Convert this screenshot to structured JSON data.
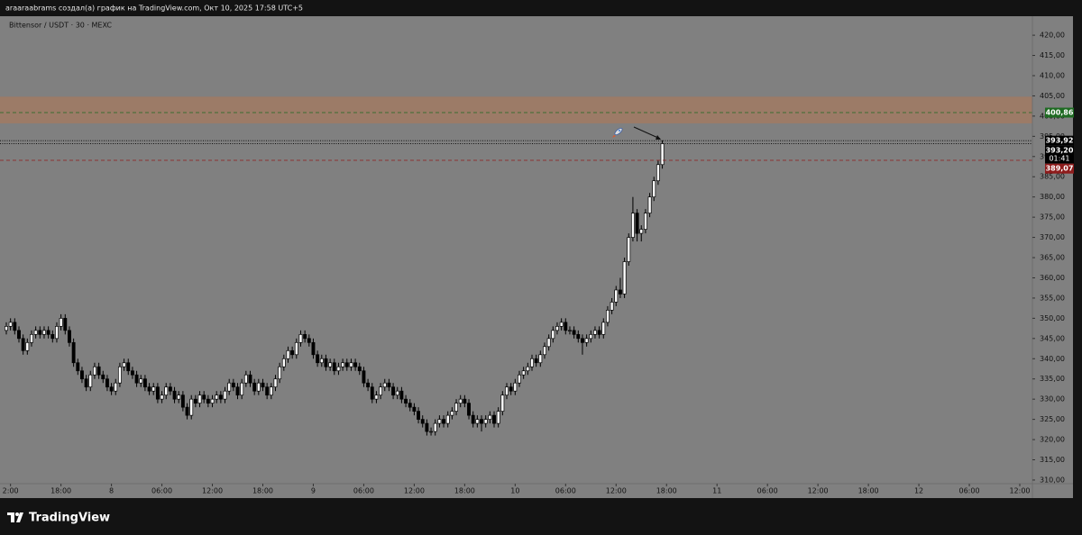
{
  "header": {
    "title": "araaraabrams создал(а) график на TradingView.com, Окт 10, 2025 17:58 UTC+5"
  },
  "footer": {
    "brand": "TradingView"
  },
  "chart_data": {
    "type": "candlestick",
    "title": "Bittensor / USDT · 30 · MEXC",
    "background": "#808080",
    "up_color": "#ffffff",
    "down_color": "#000000",
    "xlim": [
      -1.5,
      244
    ],
    "ylim": [
      309.1,
      424.7
    ],
    "xticks": [
      {
        "value": 1,
        "label": "2:00"
      },
      {
        "value": 13,
        "label": "18:00"
      },
      {
        "value": 25,
        "label": "8"
      },
      {
        "value": 37,
        "label": "06:00"
      },
      {
        "value": 49,
        "label": "12:00"
      },
      {
        "value": 61,
        "label": "18:00"
      },
      {
        "value": 73,
        "label": "9"
      },
      {
        "value": 85,
        "label": "06:00"
      },
      {
        "value": 97,
        "label": "12:00"
      },
      {
        "value": 109,
        "label": "18:00"
      },
      {
        "value": 121,
        "label": "10"
      },
      {
        "value": 133,
        "label": "06:00"
      },
      {
        "value": 145,
        "label": "12:00"
      },
      {
        "value": 157,
        "label": "18:00"
      },
      {
        "value": 169,
        "label": "11"
      },
      {
        "value": 181,
        "label": "06:00"
      },
      {
        "value": 193,
        "label": "12:00"
      },
      {
        "value": 205,
        "label": "18:00"
      },
      {
        "value": 217,
        "label": "12"
      },
      {
        "value": 229,
        "label": "06:00"
      },
      {
        "value": 241,
        "label": "12:00"
      }
    ],
    "yticks": [
      {
        "value": 310,
        "label": "310,00"
      },
      {
        "value": 315,
        "label": "315,00"
      },
      {
        "value": 320,
        "label": "320,00"
      },
      {
        "value": 325,
        "label": "325,00"
      },
      {
        "value": 330,
        "label": "330,00"
      },
      {
        "value": 335,
        "label": "335,00"
      },
      {
        "value": 340,
        "label": "340,00"
      },
      {
        "value": 345,
        "label": "345,00"
      },
      {
        "value": 350,
        "label": "350,00"
      },
      {
        "value": 355,
        "label": "355,00"
      },
      {
        "value": 360,
        "label": "360,00"
      },
      {
        "value": 365,
        "label": "365,00"
      },
      {
        "value": 370,
        "label": "370,00"
      },
      {
        "value": 375,
        "label": "375,00"
      },
      {
        "value": 380,
        "label": "380,00"
      },
      {
        "value": 385,
        "label": "385,00"
      },
      {
        "value": 390,
        "label": "390,00"
      },
      {
        "value": 395,
        "label": "395,00"
      },
      {
        "value": 400,
        "label": "400,00"
      },
      {
        "value": 405,
        "label": "405,00"
      },
      {
        "value": 410,
        "label": "410,00"
      },
      {
        "value": 415,
        "label": "415,00"
      },
      {
        "value": 420,
        "label": "420,00"
      }
    ],
    "zone": {
      "range": [
        398.2,
        404.8
      ],
      "color": "#9c7b67"
    },
    "price_lines": [
      {
        "value": 400.86,
        "label": "400,86",
        "color": "#1e6b22",
        "style": "dashed"
      },
      {
        "value": 393.92,
        "label": "393,92",
        "color": "#000000",
        "style": "dotted"
      },
      {
        "value": 393.2,
        "label": "393,20",
        "sublabel": "01:41",
        "color": "#000000",
        "style": "dotted"
      },
      {
        "value": 389.07,
        "label": "389,07",
        "color": "#8e1c1c",
        "style": "dashed"
      }
    ],
    "candles": [
      [
        347,
        349,
        346,
        348
      ],
      [
        348,
        350,
        347,
        349
      ],
      [
        349,
        350,
        346,
        347
      ],
      [
        347,
        348,
        344,
        345
      ],
      [
        345,
        346,
        341,
        342
      ],
      [
        342,
        345,
        341,
        344
      ],
      [
        344,
        347,
        343,
        346
      ],
      [
        346,
        348,
        345,
        347
      ],
      [
        347,
        348,
        345,
        346
      ],
      [
        346,
        348,
        345,
        347
      ],
      [
        347,
        348,
        345,
        346
      ],
      [
        346,
        347,
        344,
        345
      ],
      [
        345,
        349,
        344,
        348
      ],
      [
        348,
        351,
        347,
        350
      ],
      [
        350,
        351,
        346,
        347
      ],
      [
        347,
        348,
        343,
        344
      ],
      [
        344,
        345,
        338,
        339
      ],
      [
        339,
        340,
        336,
        337
      ],
      [
        337,
        338,
        334,
        335
      ],
      [
        335,
        336,
        332,
        333
      ],
      [
        333,
        337,
        332,
        336
      ],
      [
        336,
        339,
        335,
        338
      ],
      [
        338,
        339,
        335,
        336
      ],
      [
        336,
        337,
        334,
        335
      ],
      [
        335,
        336,
        332,
        333
      ],
      [
        333,
        334,
        331,
        332
      ],
      [
        332,
        335,
        331,
        334
      ],
      [
        334,
        339,
        333,
        338
      ],
      [
        338,
        340,
        337,
        339
      ],
      [
        339,
        340,
        336,
        337
      ],
      [
        337,
        338,
        335,
        336
      ],
      [
        336,
        337,
        333,
        334
      ],
      [
        334,
        336,
        333,
        335
      ],
      [
        335,
        336,
        332,
        333
      ],
      [
        333,
        334,
        331,
        332
      ],
      [
        332,
        334,
        331,
        333
      ],
      [
        333,
        334,
        329,
        330
      ],
      [
        330,
        332,
        329,
        331
      ],
      [
        331,
        334,
        330,
        333
      ],
      [
        333,
        334,
        331,
        332
      ],
      [
        332,
        333,
        329,
        330
      ],
      [
        330,
        332,
        329,
        331
      ],
      [
        331,
        332,
        327,
        328
      ],
      [
        328,
        329,
        325,
        326
      ],
      [
        326,
        331,
        325,
        330
      ],
      [
        330,
        331,
        328,
        329
      ],
      [
        329,
        332,
        328,
        331
      ],
      [
        331,
        332,
        329,
        330
      ],
      [
        330,
        331,
        328,
        329
      ],
      [
        329,
        331,
        328,
        330
      ],
      [
        330,
        332,
        329,
        331
      ],
      [
        331,
        332,
        329,
        330
      ],
      [
        330,
        333,
        329,
        332
      ],
      [
        332,
        335,
        331,
        334
      ],
      [
        334,
        335,
        332,
        333
      ],
      [
        333,
        334,
        330,
        331
      ],
      [
        331,
        335,
        330,
        334
      ],
      [
        334,
        337,
        333,
        336
      ],
      [
        336,
        337,
        333,
        334
      ],
      [
        334,
        335,
        331,
        332
      ],
      [
        332,
        335,
        331,
        334
      ],
      [
        334,
        335,
        332,
        333
      ],
      [
        333,
        334,
        330,
        331
      ],
      [
        331,
        334,
        330,
        333
      ],
      [
        333,
        336,
        332,
        335
      ],
      [
        335,
        339,
        334,
        338
      ],
      [
        338,
        341,
        337,
        340
      ],
      [
        340,
        343,
        339,
        342
      ],
      [
        342,
        343,
        340,
        341
      ],
      [
        341,
        345,
        340,
        344
      ],
      [
        344,
        347,
        343,
        346
      ],
      [
        346,
        347,
        344,
        345
      ],
      [
        345,
        346,
        343,
        344
      ],
      [
        344,
        345,
        340,
        341
      ],
      [
        341,
        342,
        338,
        339
      ],
      [
        339,
        341,
        338,
        340
      ],
      [
        340,
        341,
        337,
        338
      ],
      [
        338,
        340,
        337,
        339
      ],
      [
        339,
        340,
        336,
        337
      ],
      [
        337,
        339,
        336,
        338
      ],
      [
        338,
        340,
        337,
        339
      ],
      [
        339,
        340,
        337,
        338
      ],
      [
        338,
        340,
        337,
        339
      ],
      [
        339,
        340,
        337,
        338
      ],
      [
        338,
        339,
        336,
        337
      ],
      [
        337,
        338,
        333,
        334
      ],
      [
        334,
        335,
        332,
        333
      ],
      [
        333,
        334,
        329,
        330
      ],
      [
        330,
        332,
        329,
        331
      ],
      [
        331,
        334,
        330,
        333
      ],
      [
        333,
        335,
        332,
        334
      ],
      [
        334,
        335,
        332,
        333
      ],
      [
        333,
        334,
        330,
        331
      ],
      [
        331,
        333,
        330,
        332
      ],
      [
        332,
        333,
        329,
        330
      ],
      [
        330,
        331,
        328,
        329
      ],
      [
        329,
        330,
        327,
        328
      ],
      [
        328,
        329,
        326,
        327
      ],
      [
        327,
        328,
        324,
        325
      ],
      [
        325,
        326,
        323,
        324
      ],
      [
        324,
        325,
        321,
        322
      ],
      [
        322,
        323,
        321,
        322
      ],
      [
        322,
        325,
        321,
        324
      ],
      [
        324,
        326,
        323,
        325
      ],
      [
        325,
        326,
        323,
        324
      ],
      [
        324,
        327,
        323,
        326
      ],
      [
        326,
        328,
        325,
        327
      ],
      [
        327,
        330,
        326,
        329
      ],
      [
        329,
        331,
        328,
        330
      ],
      [
        330,
        331,
        328,
        329
      ],
      [
        329,
        330,
        325,
        326
      ],
      [
        326,
        327,
        323,
        324
      ],
      [
        324,
        326,
        323,
        325
      ],
      [
        325,
        326,
        322,
        324
      ],
      [
        324,
        326,
        323,
        325
      ],
      [
        325,
        327,
        324,
        326
      ],
      [
        326,
        327,
        323,
        324
      ],
      [
        324,
        328,
        323,
        327
      ],
      [
        327,
        332,
        326,
        331
      ],
      [
        331,
        334,
        330,
        333
      ],
      [
        333,
        334,
        331,
        332
      ],
      [
        332,
        335,
        331,
        334
      ],
      [
        334,
        337,
        333,
        336
      ],
      [
        336,
        338,
        335,
        337
      ],
      [
        337,
        339,
        336,
        338
      ],
      [
        338,
        341,
        337,
        340
      ],
      [
        340,
        341,
        338,
        339
      ],
      [
        339,
        342,
        338,
        341
      ],
      [
        341,
        344,
        340,
        343
      ],
      [
        343,
        346,
        342,
        345
      ],
      [
        345,
        348,
        344,
        347
      ],
      [
        347,
        349,
        346,
        348
      ],
      [
        348,
        350,
        347,
        349
      ],
      [
        349,
        350,
        346,
        347
      ],
      [
        347,
        348,
        346,
        347
      ],
      [
        347,
        348,
        345,
        346
      ],
      [
        346,
        347,
        344,
        345
      ],
      [
        345,
        346,
        341,
        344
      ],
      [
        344,
        346,
        343,
        345
      ],
      [
        345,
        347,
        344,
        346
      ],
      [
        346,
        348,
        345,
        347
      ],
      [
        347,
        348,
        345,
        346
      ],
      [
        346,
        350,
        345,
        349
      ],
      [
        349,
        353,
        348,
        352
      ],
      [
        352,
        355,
        351,
        354
      ],
      [
        354,
        358,
        353,
        357
      ],
      [
        357,
        360,
        355,
        356
      ],
      [
        356,
        365,
        355,
        364
      ],
      [
        364,
        371,
        363,
        370
      ],
      [
        370,
        380,
        369,
        376
      ],
      [
        376,
        377,
        369,
        371
      ],
      [
        371,
        373,
        369,
        372
      ],
      [
        372,
        377,
        371,
        376
      ],
      [
        376,
        381,
        375,
        380
      ],
      [
        380,
        385,
        379,
        384
      ],
      [
        384,
        389,
        383,
        388
      ],
      [
        388,
        394,
        387,
        393.2
      ]
    ]
  }
}
